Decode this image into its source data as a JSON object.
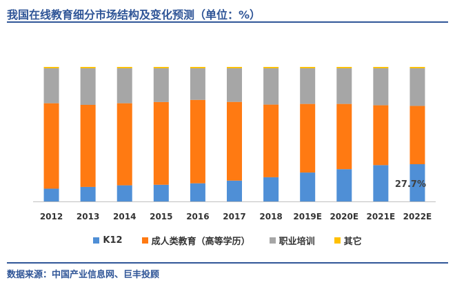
{
  "title": "我国在线教育细分市场结构及变化预测（单位：%）",
  "source": "数据来源：中国产业信息网、巨丰投顾",
  "colors": {
    "K12": "#4f8fd6",
    "adult": "#ff7a12",
    "vocational": "#a6a6a6",
    "other": "#ffc000",
    "accent": "#2f5597"
  },
  "chart_data": {
    "type": "bar",
    "stacked": true,
    "categories": [
      "2012",
      "2013",
      "2014",
      "2015",
      "2016",
      "2017",
      "2018",
      "2019E",
      "2020E",
      "2021E",
      "2022E"
    ],
    "series": [
      {
        "name": "K12",
        "values": [
          9.5,
          10.8,
          12.0,
          12.4,
          13.5,
          15.5,
          18.0,
          21.5,
          24.0,
          27.0,
          27.7
        ]
      },
      {
        "name": "成人类教育（高等学历）",
        "values": [
          63.5,
          61.0,
          61.0,
          61.5,
          62.0,
          58.5,
          54.0,
          51.0,
          48.5,
          44.5,
          43.3
        ]
      },
      {
        "name": "职业培训",
        "values": [
          26.0,
          27.2,
          26.0,
          25.1,
          23.5,
          25.0,
          27.0,
          26.5,
          26.5,
          27.5,
          28.0
        ]
      },
      {
        "name": "其它",
        "values": [
          1.0,
          1.0,
          1.0,
          1.0,
          1.0,
          1.0,
          1.0,
          1.0,
          1.0,
          1.0,
          1.0
        ]
      }
    ],
    "ylim": [
      0,
      100
    ],
    "data_labels": [
      {
        "category": "2022E",
        "series": "K12",
        "text": "27.7%"
      }
    ],
    "legend_position": "bottom",
    "grid": false
  }
}
